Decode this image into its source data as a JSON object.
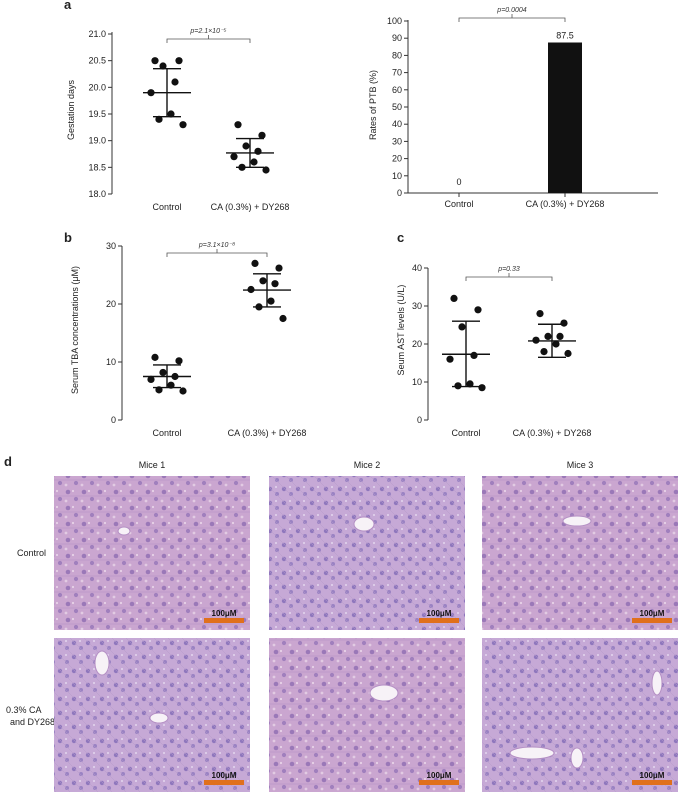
{
  "figure": {
    "panel_letters": [
      "a",
      "b",
      "c",
      "d"
    ]
  },
  "chart_data": [
    {
      "id": "a1",
      "type": "scatter",
      "ylabel": "Gestation days",
      "xlabel": "",
      "categories": [
        "Control",
        "CA (0.3%) + DY268"
      ],
      "ylim": [
        18.0,
        21.0
      ],
      "yticks": [
        "18.0",
        "18.5",
        "19.0",
        "19.5",
        "20.0",
        "20.5",
        "21.0"
      ],
      "series": [
        {
          "values": [
            20.5,
            20.5,
            20.4,
            20.1,
            19.9,
            19.5,
            19.4,
            19.3
          ],
          "mean": 19.9,
          "sd_low": 19.45,
          "sd_high": 20.35
        },
        {
          "values": [
            19.3,
            19.1,
            18.9,
            18.8,
            18.7,
            18.6,
            18.5,
            18.45
          ],
          "mean": 18.77,
          "sd_low": 18.5,
          "sd_high": 19.04
        }
      ],
      "pvalue": "p=2.1×10⁻⁵"
    },
    {
      "id": "a2",
      "type": "bar",
      "ylabel": "Rates of PTB (%)",
      "xlabel": "",
      "categories": [
        "Control",
        "CA (0.3%) + DY268"
      ],
      "values": [
        0,
        87.5
      ],
      "value_labels": [
        "0",
        "87.5"
      ],
      "ylim": [
        0,
        100
      ],
      "yticks": [
        "0",
        "10",
        "20",
        "30",
        "40",
        "50",
        "60",
        "70",
        "80",
        "90",
        "100"
      ],
      "pvalue": "p=0.0004",
      "bar_color": "#111111"
    },
    {
      "id": "b",
      "type": "scatter",
      "ylabel": "Serum TBA concentrations (μM)",
      "xlabel": "",
      "categories": [
        "Control",
        "CA (0.3%) + DY268"
      ],
      "ylim": [
        0,
        30
      ],
      "yticks": [
        "0",
        "10",
        "20",
        "30"
      ],
      "series": [
        {
          "values": [
            10.8,
            10.2,
            8.2,
            7.5,
            7.0,
            6.0,
            5.2,
            5.0
          ],
          "mean": 7.5,
          "sd_low": 5.6,
          "sd_high": 9.5
        },
        {
          "values": [
            27.0,
            26.2,
            24.0,
            23.5,
            22.5,
            20.5,
            19.5,
            17.5
          ],
          "mean": 22.4,
          "sd_low": 19.5,
          "sd_high": 25.2
        }
      ],
      "pvalue": "p=3.1×10⁻⁸"
    },
    {
      "id": "c",
      "type": "scatter",
      "ylabel": "Seum AST levels (U/L)",
      "xlabel": "",
      "categories": [
        "Control",
        "CA (0.3%) + DY268"
      ],
      "ylim": [
        0,
        40
      ],
      "yticks": [
        "0",
        "10",
        "20",
        "30",
        "40"
      ],
      "series": [
        {
          "values": [
            32.0,
            29.0,
            24.5,
            17.0,
            16.0,
            9.5,
            9.0,
            8.5
          ],
          "mean": 17.3,
          "sd_low": 8.8,
          "sd_high": 26.0
        },
        {
          "values": [
            28.0,
            25.5,
            22.0,
            22.0,
            21.0,
            20.0,
            18.0,
            17.5
          ],
          "mean": 20.8,
          "sd_low": 16.5,
          "sd_high": 25.2
        }
      ],
      "pvalue": "p=0.33"
    }
  ],
  "histology": {
    "columns": [
      "Mice 1",
      "Mice 2",
      "Mice 3"
    ],
    "rows": [
      "Control",
      "0.3% CA and DY268"
    ],
    "scale_bar": "100μM",
    "tissue_color": "#c9a3cf",
    "nuclei_color": "#7e5aa6",
    "scale_color": "#e0701c"
  }
}
